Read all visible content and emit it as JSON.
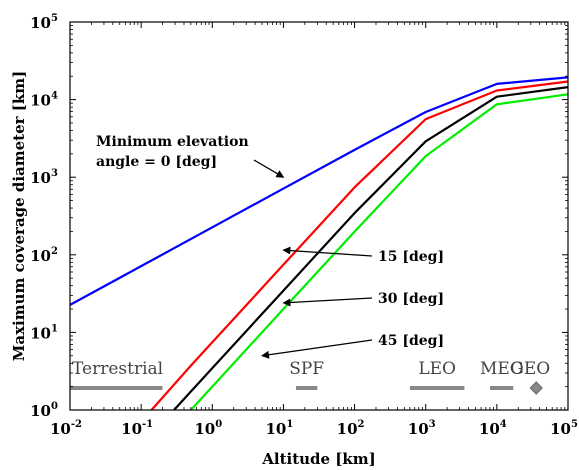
{
  "chart_data": {
    "type": "line",
    "xlabel": "Altitude [km]",
    "ylabel": "Maximum coverage diameter [km]",
    "xscale": "log",
    "yscale": "log",
    "xlim": [
      0.01,
      100000
    ],
    "ylim": [
      1,
      100000
    ],
    "x_tick_labels": [
      {
        "value": 0.01,
        "base": "10",
        "exp": "-2"
      },
      {
        "value": 0.1,
        "base": "10",
        "exp": "-1"
      },
      {
        "value": 1,
        "base": "10",
        "exp": "0"
      },
      {
        "value": 10,
        "base": "10",
        "exp": "1"
      },
      {
        "value": 100,
        "base": "10",
        "exp": "2"
      },
      {
        "value": 1000,
        "base": "10",
        "exp": "3"
      },
      {
        "value": 10000,
        "base": "10",
        "exp": "4"
      },
      {
        "value": 100000,
        "base": "10",
        "exp": "5"
      }
    ],
    "y_tick_labels": [
      {
        "value": 1,
        "base": "10",
        "exp": "0"
      },
      {
        "value": 10,
        "base": "10",
        "exp": "1"
      },
      {
        "value": 100,
        "base": "10",
        "exp": "2"
      },
      {
        "value": 1000,
        "base": "10",
        "exp": "3"
      },
      {
        "value": 10000,
        "base": "10",
        "exp": "4"
      },
      {
        "value": 100000,
        "base": "10",
        "exp": "5"
      }
    ],
    "grid": false,
    "series": [
      {
        "name": "Minimum elevation angle = 0 [deg]",
        "elevation_deg": 0,
        "color": "#0000ff",
        "x": [
          0.01,
          0.1,
          1,
          10,
          100,
          1000,
          10000,
          100000
        ],
        "y": [
          22.6,
          71.4,
          226,
          714,
          2250,
          6920,
          15950,
          19350
        ]
      },
      {
        "name": "15 [deg]",
        "elevation_deg": 15,
        "color": "#ff0000",
        "x": [
          0.14,
          0.5,
          1,
          10,
          100,
          1000,
          10000,
          100000
        ],
        "y": [
          1,
          3.73,
          7.46,
          74.6,
          740,
          5600,
          13100,
          17100
        ]
      },
      {
        "name": "30 [deg]",
        "elevation_deg": 30,
        "color": "#000000",
        "x": [
          0.29,
          0.5,
          1,
          10,
          100,
          1000,
          10000,
          100000
        ],
        "y": [
          1,
          1.73,
          3.46,
          34.6,
          345,
          2900,
          10900,
          14500
        ]
      },
      {
        "name": "45 [deg]",
        "elevation_deg": 45,
        "color": "#00ee00",
        "x": [
          0.5,
          1,
          10,
          100,
          1000,
          10000,
          100000
        ],
        "y": [
          1,
          2,
          20,
          199,
          1870,
          8700,
          11700
        ]
      }
    ],
    "annotations": [
      {
        "lines": [
          "Minimum elevation",
          "angle = 0 [deg]"
        ],
        "points_to": {
          "x": 10,
          "y": 1000
        }
      },
      {
        "lines": [
          "15 [deg]"
        ],
        "points_to": {
          "x": 10,
          "y": 115
        }
      },
      {
        "lines": [
          "30 [deg]"
        ],
        "points_to": {
          "x": 10,
          "y": 24
        }
      },
      {
        "lines": [
          "45 [deg]"
        ],
        "points_to": {
          "x": 5,
          "y": 5
        }
      }
    ],
    "bands": [
      {
        "label": "Terrestrial",
        "x_from": 0.01,
        "x_to": 0.2
      },
      {
        "label": "SPF",
        "x_from": 15,
        "x_to": 30
      },
      {
        "label": "LEO",
        "x_from": 600,
        "x_to": 3500
      },
      {
        "label": "MEO",
        "x_from": 8000,
        "x_to": 17000
      },
      {
        "label": "GEO",
        "x_from": 35786,
        "x_to": 35786,
        "marker": "diamond"
      }
    ],
    "band_color": "#888888"
  }
}
